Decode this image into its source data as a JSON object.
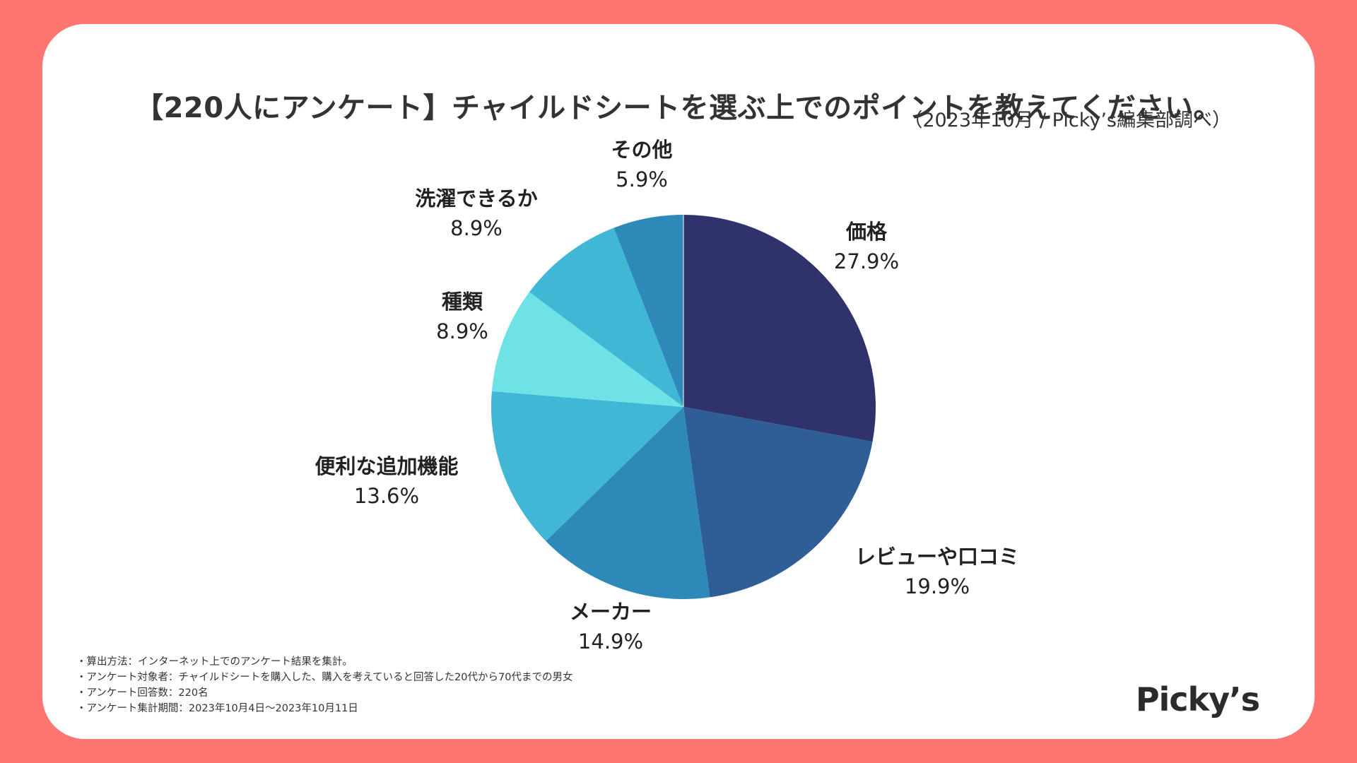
{
  "title": "【220人にアンケート】チャイルドシートを選ぶ上でのポイントを教えてください。",
  "subtitle": "（2023年10月 / Picky’s編集部調べ）",
  "notes": [
    "・算出方法：インターネット上でのアンケート結果を集計。",
    "・アンケート対象者：チャイルドシートを購入した、購入を考えていると回答した20代から70代までの男女",
    "・アンケート回答数：220名",
    "・アンケート集計期間：2023年10月4日〜2023年10月11日"
  ],
  "logo": "Picky’s",
  "colors": {
    "background": "#fe7672",
    "card": "#ffffff",
    "text": "#333333"
  },
  "chart_data": {
    "type": "pie",
    "title": "【220人にアンケート】チャイルドシートを選ぶ上でのポイントを教えてください。",
    "unit": "%",
    "slices": [
      {
        "label": "価格",
        "value": 27.9,
        "display": "27.9%",
        "color": "#30336b"
      },
      {
        "label": "レビューや口コミ",
        "value": 19.9,
        "display": "19.9%",
        "color": "#2f5e96"
      },
      {
        "label": "メーカー",
        "value": 14.9,
        "display": "14.9%",
        "color": "#2d89b8"
      },
      {
        "label": "便利な追加機能",
        "value": 13.6,
        "display": "13.6%",
        "color": "#41b7d6"
      },
      {
        "label": "種類",
        "value": 8.9,
        "display": "8.9%",
        "color": "#6de3e6"
      },
      {
        "label": "洗濯できるか",
        "value": 8.9,
        "display": "8.9%",
        "color": "#41b7d6"
      },
      {
        "label": "その他",
        "value": 5.9,
        "display": "5.9%",
        "color": "#2d89b8"
      }
    ]
  }
}
